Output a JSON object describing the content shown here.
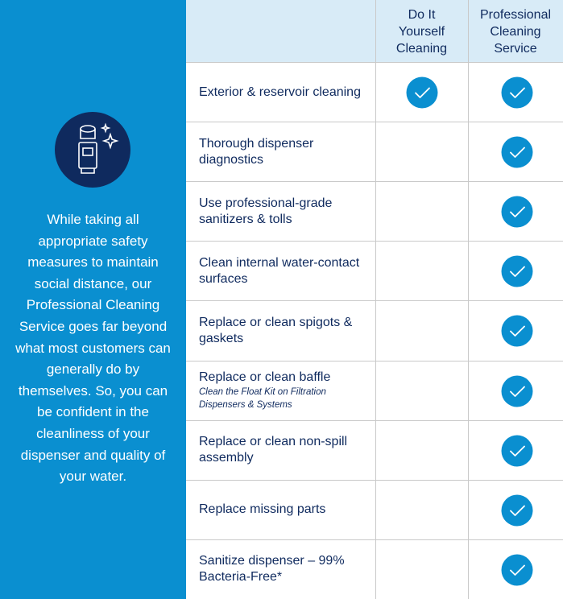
{
  "intro": {
    "text": "While taking all appropriate safety measures to maintain social distance, our Professional Cleaning Service goes far beyond what most customers can generally do by themselves. So, you can be confident in the cleanliness of your dispenser and quality of your water."
  },
  "table": {
    "columns": [
      "Do It Yourself Cleaning",
      "Professional Cleaning Service"
    ],
    "rows": [
      {
        "label": "Exterior & reservoir cleaning",
        "diy": true,
        "pro": true
      },
      {
        "label": "Thorough dispenser diagnostics",
        "diy": false,
        "pro": true
      },
      {
        "label": "Use professional-grade sanitizers & tolls",
        "diy": false,
        "pro": true
      },
      {
        "label": "Clean internal water-contact surfaces",
        "diy": false,
        "pro": true
      },
      {
        "label": "Replace or clean spigots & gaskets",
        "diy": false,
        "pro": true
      },
      {
        "label": "Replace or clean baffle",
        "note": "Clean the Float Kit on Filtration Dispensers & Systems",
        "diy": false,
        "pro": true
      },
      {
        "label": "Replace or clean non-spill assembly",
        "diy": false,
        "pro": true
      },
      {
        "label": "Replace missing parts",
        "diy": false,
        "pro": true
      },
      {
        "label": "Sanitize dispenser – 99% Bacteria-Free*",
        "diy": false,
        "pro": true
      }
    ]
  }
}
